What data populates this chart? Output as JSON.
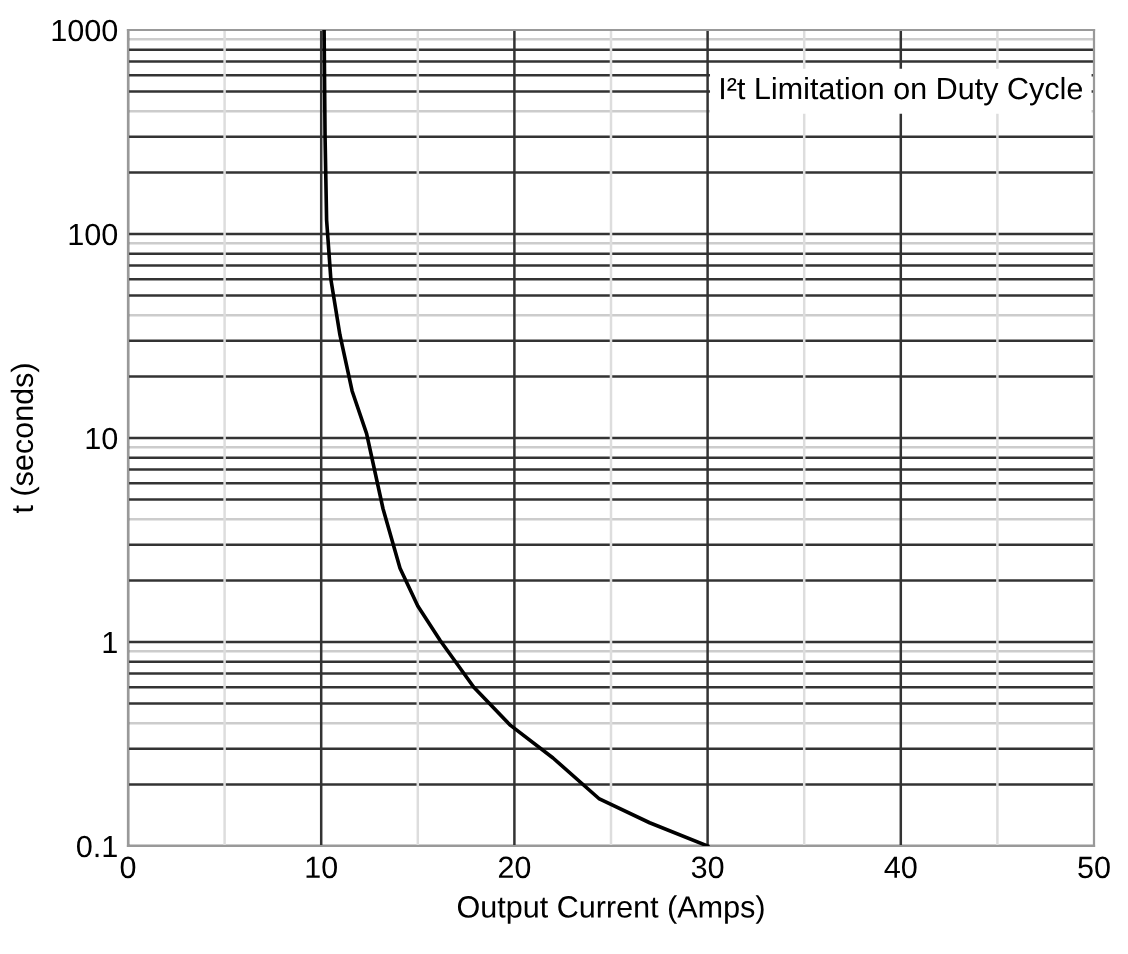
{
  "chart_data": {
    "type": "line",
    "xlabel": "Output Current (Amps)",
    "ylabel": "t (seconds)",
    "annotations": [
      "I²t Limitation on Duty Cycle"
    ],
    "series": [
      {
        "color": "#000000",
        "x": [
          10.15,
          10.2,
          10.28,
          10.5,
          10.97,
          11.6,
          12.35,
          13.2,
          14.08,
          15.0,
          16.15,
          17.9,
          19.8,
          22.0,
          24.4,
          27.0,
          30.0
        ],
        "values": [
          1000,
          300,
          117,
          60,
          32,
          17,
          10.5,
          4.5,
          2.3,
          1.5,
          1.02,
          0.6,
          0.39,
          0.27,
          0.17,
          0.13,
          0.1
        ]
      }
    ],
    "log": "y",
    "xlim": [
      0,
      50
    ],
    "ylim": [
      0.1,
      1000
    ],
    "xticks": [
      0,
      10,
      20,
      30,
      40,
      50
    ],
    "yticks": [
      0.1,
      1,
      10,
      100,
      1000
    ],
    "grid": true,
    "marker": "none",
    "line_style": "solid"
  }
}
